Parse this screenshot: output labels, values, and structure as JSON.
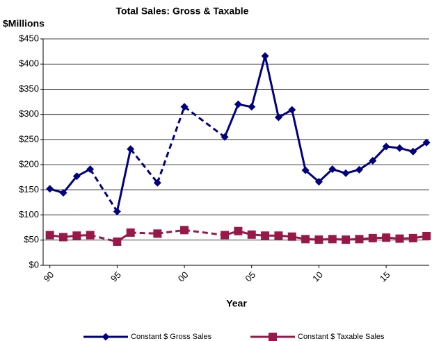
{
  "chart_data": {
    "type": "line",
    "title": "Total Sales: Gross & Taxable",
    "y_label": "$Millions",
    "x_label": "Year",
    "x": [
      1990,
      1991,
      1992,
      1993,
      1995,
      1996,
      1998,
      2000,
      2003,
      2004,
      2005,
      2006,
      2007,
      2008,
      2009,
      2010,
      2011,
      2012,
      2013,
      2014,
      2015,
      2016,
      2017,
      2018
    ],
    "series": [
      {
        "name": "Constant $ Gross Sales",
        "color": "#000080",
        "marker": "diamond",
        "values": [
          152,
          144,
          177,
          191,
          107,
          231,
          164,
          315,
          255,
          320,
          315,
          416,
          294,
          309,
          189,
          166,
          191,
          183,
          190,
          208,
          236,
          233,
          226,
          244
        ]
      },
      {
        "name": "Constant $ Taxable Sales",
        "color": "#99184a",
        "marker": "square",
        "values": [
          60,
          56,
          59,
          60,
          47,
          65,
          63,
          70,
          60,
          68,
          61,
          59,
          59,
          57,
          52,
          51,
          52,
          51,
          52,
          54,
          55,
          53,
          54,
          58
        ]
      }
    ],
    "xlim": [
      1989.5,
      2018.2
    ],
    "xticks": [
      {
        "value": 1990,
        "label": "90"
      },
      {
        "value": 1995,
        "label": "95"
      },
      {
        "value": 2000,
        "label": "00"
      },
      {
        "value": 2005,
        "label": "05"
      },
      {
        "value": 2010,
        "label": "10"
      },
      {
        "value": 2015,
        "label": "15"
      }
    ],
    "ylim": [
      0,
      450
    ],
    "yticks": [
      {
        "value": 0,
        "label": "$0"
      },
      {
        "value": 50,
        "label": "$50"
      },
      {
        "value": 100,
        "label": "$100"
      },
      {
        "value": 150,
        "label": "$150"
      },
      {
        "value": 200,
        "label": "$200"
      },
      {
        "value": 250,
        "label": "$250"
      },
      {
        "value": 300,
        "label": "$300"
      },
      {
        "value": 350,
        "label": "$350"
      },
      {
        "value": 400,
        "label": "$400"
      },
      {
        "value": 450,
        "label": "$450"
      }
    ],
    "grid": true,
    "legend": "bottom"
  }
}
